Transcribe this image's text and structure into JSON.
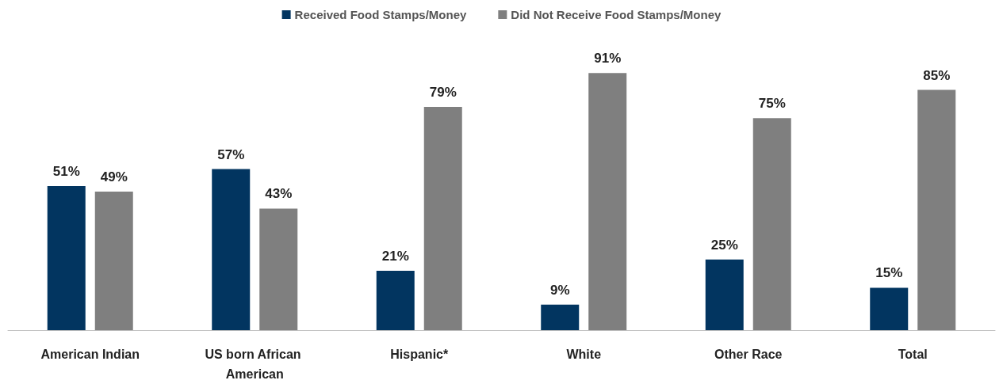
{
  "chart_data": {
    "type": "bar",
    "categories": [
      "American Indian",
      "US born African American",
      "Hispanic*",
      "White",
      "Other Race",
      "Total"
    ],
    "series": [
      {
        "name": "Received Food Stamps/Money",
        "color": "#023560",
        "values": [
          51,
          57,
          21,
          9,
          25,
          15
        ],
        "value_labels": [
          "51%",
          "57%",
          "21%",
          "9%",
          "25%",
          "15%"
        ]
      },
      {
        "name": "Did Not Receive Food Stamps/Money",
        "color": "#7f7f7f",
        "values": [
          49,
          43,
          79,
          91,
          75,
          85
        ],
        "value_labels": [
          "49%",
          "43%",
          "79%",
          "91%",
          "75%",
          "85%"
        ]
      }
    ],
    "legend": "top"
  }
}
